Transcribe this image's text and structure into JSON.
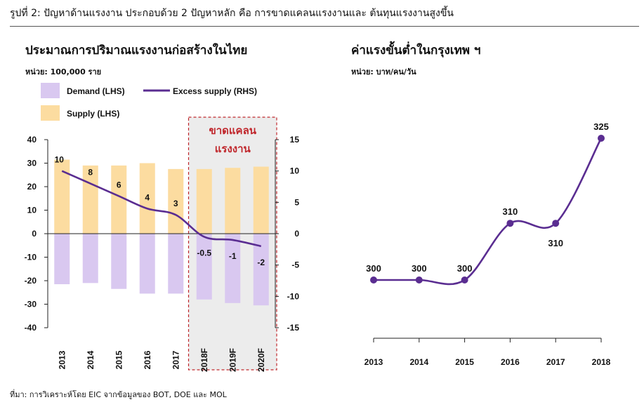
{
  "figure_title": "รูปที่ 2: ปัญหาด้านแรงงาน ประกอบด้วย 2 ปัญหาหลัก คือ การขาดแคลนแรงงานและ ต้นทุนแรงงานสูงขึ้น",
  "source": "ที่มา: การวิเคราะห์โดย EIC จากข้อมูลของ BOT, DOE และ MOL",
  "chart_data": [
    {
      "type": "bar",
      "title": "ประมาณการปริมาณแรงงานก่อสร้างในไทย",
      "unit": "หน่วย: 100,000 ราย",
      "categories": [
        "2013",
        "2014",
        "2015",
        "2016",
        "2017",
        "2018F",
        "2019F",
        "2020F"
      ],
      "series": [
        {
          "name": "Demand (LHS)",
          "axis": "left",
          "chart": "bar",
          "color": "#d9c8f0",
          "values": [
            -21.5,
            -21,
            -23.5,
            -25.5,
            -25.5,
            -28,
            -29.5,
            -30.5
          ]
        },
        {
          "name": "Supply (LHS)",
          "axis": "left",
          "chart": "bar",
          "color": "#fcdca0",
          "values": [
            31.5,
            29,
            29,
            30,
            27.5,
            27.5,
            28,
            28.5
          ]
        },
        {
          "name": "Excess supply (RHS)",
          "axis": "right",
          "chart": "line",
          "color": "#5a2d91",
          "values": [
            10,
            8,
            6,
            4,
            3,
            -0.5,
            -1,
            -2
          ],
          "labels": [
            "10",
            "8",
            "6",
            "4",
            "3",
            "-0.5",
            "-1",
            "-2"
          ]
        }
      ],
      "left_axis": {
        "ylim": [
          -40,
          40
        ],
        "ticks": [
          "40",
          "30",
          "20",
          "10",
          "0",
          "-10",
          "-20",
          "-30",
          "-40"
        ]
      },
      "right_axis": {
        "ylim": [
          -15,
          15
        ],
        "ticks": [
          "15",
          "10",
          "5",
          "0",
          "-5",
          "-10",
          "-15"
        ]
      },
      "highlight": {
        "label_line1": "ขาดแคลน",
        "label_line2": "แรงงาน",
        "from": "2018F",
        "to": "2020F",
        "color": "#c0282d"
      },
      "legend_placement": "top-left"
    },
    {
      "type": "line",
      "title": "ค่าแรงขั้นต่ำในกรุงเทพ ฯ",
      "unit": "หน่วย: บาท/คน/วัน",
      "x": [
        "2013",
        "2014",
        "2015",
        "2016",
        "2017",
        "2018"
      ],
      "values": [
        300,
        300,
        300,
        310,
        310,
        325
      ],
      "labels": [
        "300",
        "300",
        "300",
        "310",
        "310",
        "325"
      ],
      "color": "#5a2d91"
    }
  ]
}
